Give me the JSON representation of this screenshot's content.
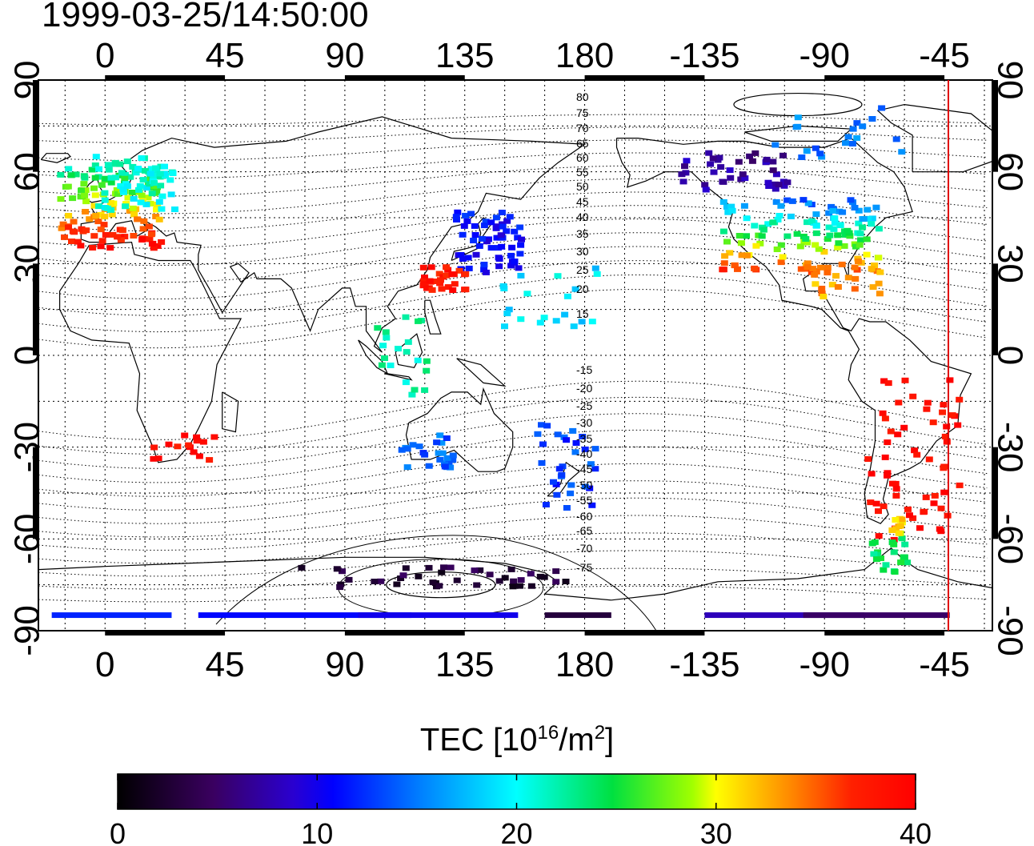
{
  "title": "1999-03-25/14:50:00",
  "map": {
    "top_lon_ticks": [
      "0",
      "45",
      "90",
      "135",
      "180",
      "-135",
      "-90",
      "-45"
    ],
    "bottom_lon_ticks": [
      "0",
      "45",
      "90",
      "135",
      "180",
      "-135",
      "-90",
      "-45"
    ],
    "left_lat_ticks": [
      "90",
      "60",
      "30",
      "0",
      "-30",
      "-60",
      "-90"
    ],
    "right_lat_ticks": [
      "90",
      "60",
      "30",
      "0",
      "-30",
      "-60",
      "-90"
    ],
    "contour_labels_north": [
      "80",
      "75",
      "70",
      "65",
      "60",
      "55",
      "50",
      "45",
      "40",
      "35",
      "30",
      "25",
      "20",
      "15"
    ],
    "contour_labels_south": [
      "-15",
      "-20",
      "-25",
      "-30",
      "-35",
      "-40",
      "-45",
      "-50",
      "-55",
      "-60",
      "-65",
      "-70",
      "-75"
    ],
    "terminator_color": "#e00000",
    "lon_range": [
      -25,
      333
    ],
    "lat_range": [
      -90,
      90
    ]
  },
  "colorbar": {
    "label_prefix": "TEC  [10",
    "label_exp1": "16",
    "label_mid": "/m",
    "label_exp2": "2",
    "label_suffix": "]",
    "ticks": [
      "0",
      "10",
      "20",
      "30",
      "40"
    ],
    "range": [
      0,
      40
    ]
  }
}
